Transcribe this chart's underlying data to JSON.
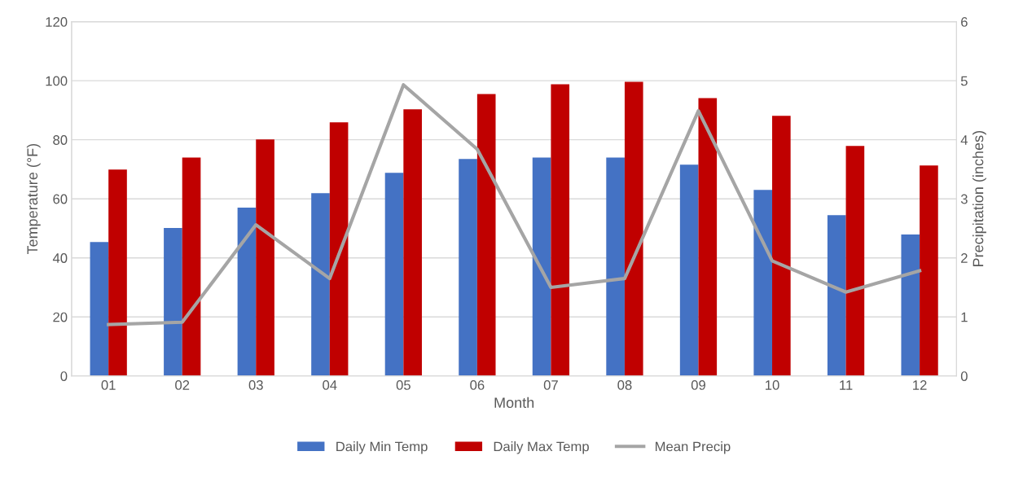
{
  "chart_data": {
    "type": "bar",
    "xlabel": "Month",
    "ylabel": "Temperature (°F)",
    "y2label": "Precipitation (inches)",
    "categories": [
      "01",
      "02",
      "03",
      "04",
      "05",
      "06",
      "07",
      "08",
      "09",
      "10",
      "11",
      "12"
    ],
    "series": [
      {
        "name": "Daily Min Temp",
        "color": "#4472c4",
        "values": [
          45.4,
          50.1,
          57,
          61.9,
          68.8,
          73.5,
          74,
          74,
          71.6,
          63,
          54.5,
          47.9
        ]
      },
      {
        "name": "Daily Max Temp",
        "color": "#c00000",
        "values": [
          69.9,
          74,
          80.1,
          85.9,
          90.3,
          95.5,
          98.8,
          99.6,
          94.1,
          88.1,
          77.9,
          71.3
        ]
      },
      {
        "name": "Mean Precip",
        "type": "line",
        "axis": "y2",
        "color": "#a5a5a5",
        "values": [
          0.87,
          0.91,
          2.56,
          1.65,
          4.93,
          3.84,
          1.5,
          1.65,
          4.49,
          1.95,
          1.42,
          1.78
        ]
      }
    ],
    "ylim": [
      0,
      120
    ],
    "yticks": [
      0,
      20,
      40,
      60,
      80,
      100,
      120
    ],
    "y2lim": [
      0,
      6
    ],
    "y2ticks": [
      0,
      1,
      2,
      3,
      4,
      5,
      6
    ],
    "grid": "y",
    "legend": "bottom",
    "marker": "none"
  }
}
